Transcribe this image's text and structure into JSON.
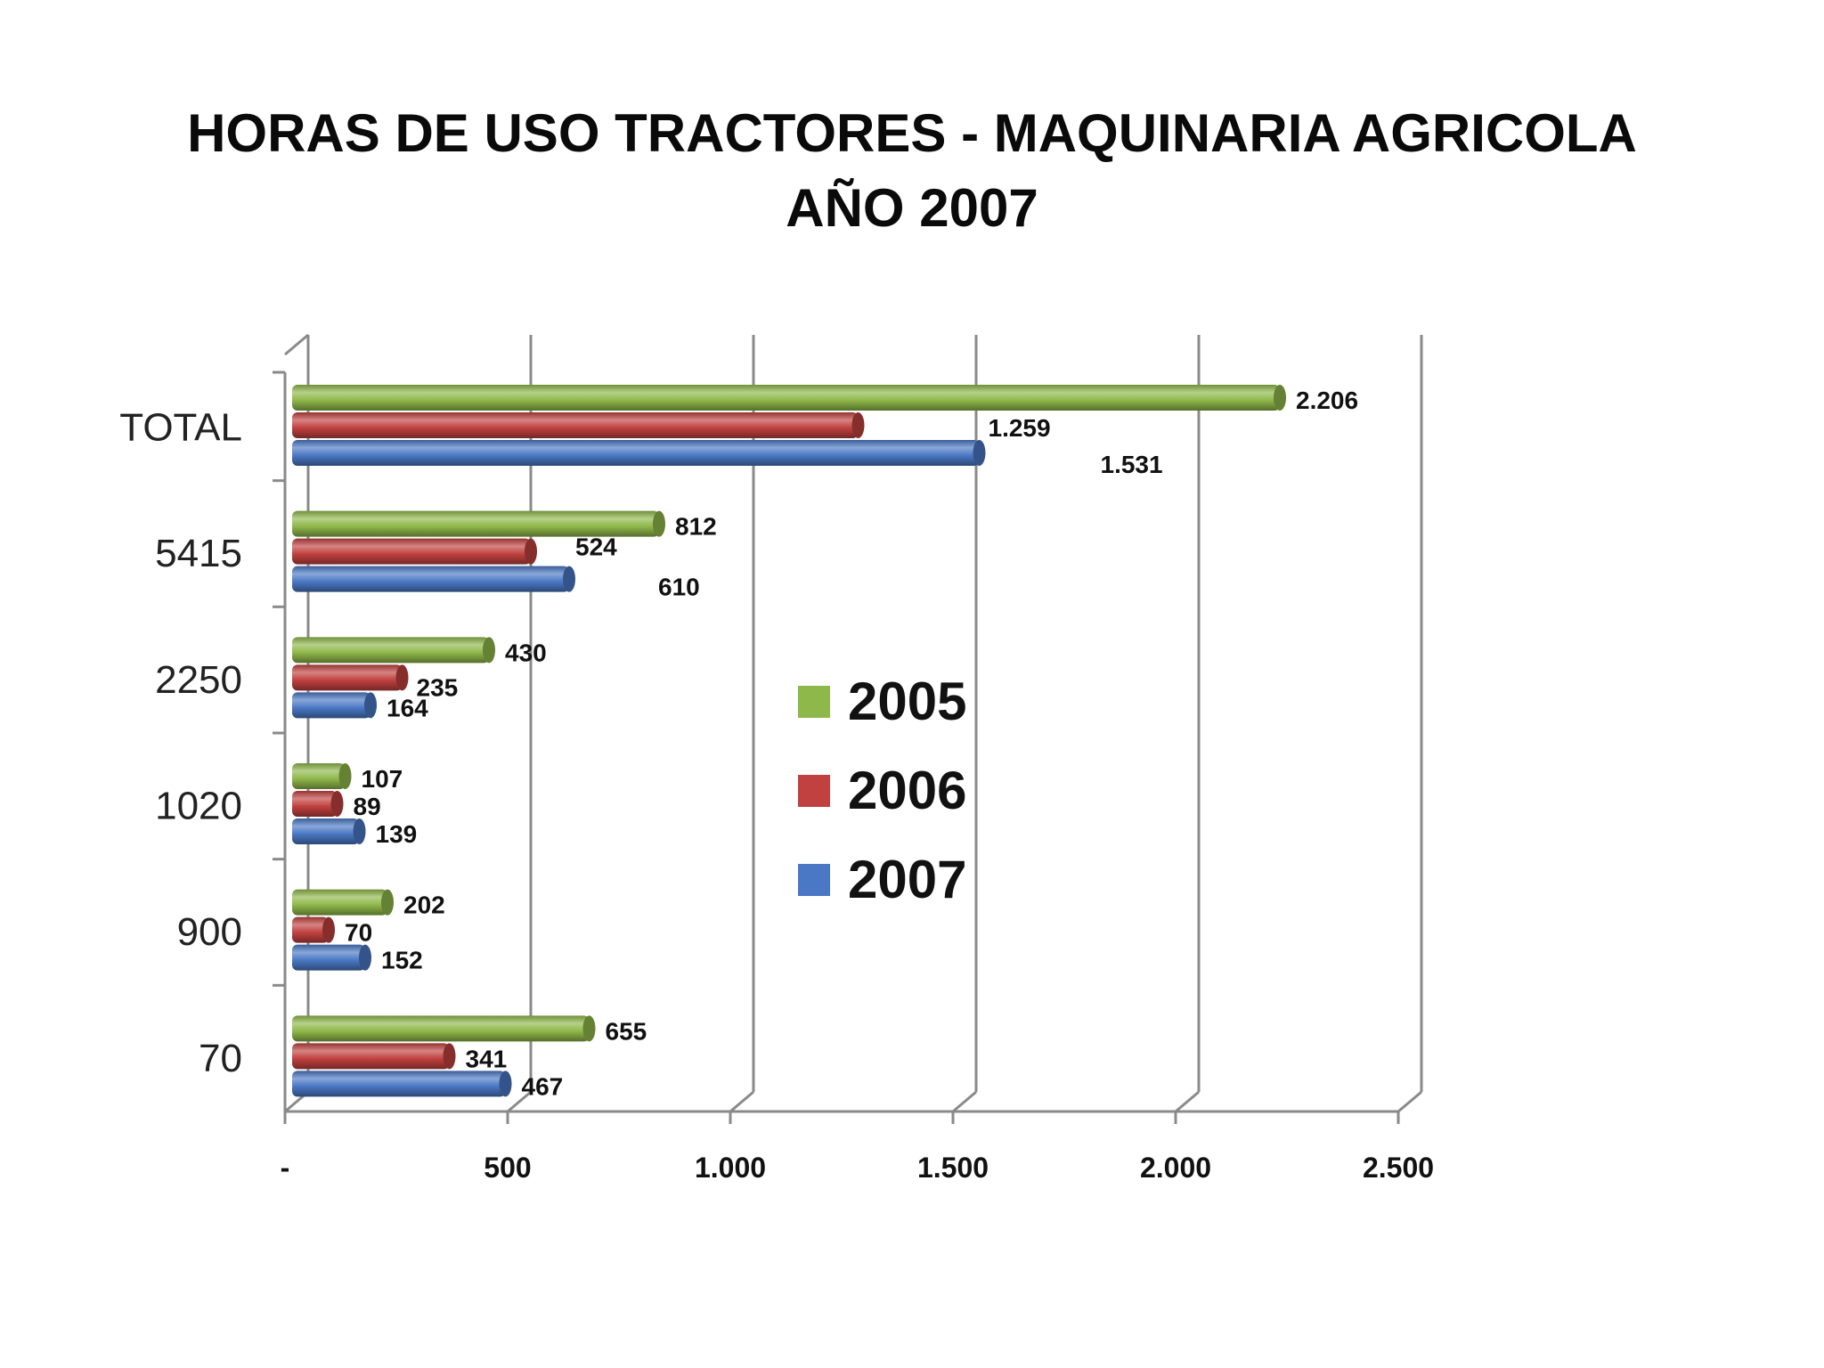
{
  "title_line1": "HORAS DE USO TRACTORES  -  MAQUINARIA AGRICOLA",
  "title_line2": "AÑO  2007",
  "chart_data": {
    "type": "bar",
    "orientation": "horizontal",
    "title": "HORAS DE USO TRACTORES  -  MAQUINARIA AGRICOLA AÑO  2007",
    "categories": [
      "TOTAL",
      "5415",
      "2250",
      "1020",
      "900",
      "70"
    ],
    "series": [
      {
        "name": "2005",
        "color": "#8fb84a",
        "values": [
          2206,
          812,
          430,
          107,
          202,
          655
        ],
        "labels": [
          "2.206",
          "812",
          "430",
          "107",
          "202",
          "655"
        ]
      },
      {
        "name": "2006",
        "color": "#c0413f",
        "values": [
          1259,
          524,
          235,
          89,
          70,
          341
        ],
        "labels": [
          "1.259",
          "524",
          "235",
          "89",
          "70",
          "341"
        ]
      },
      {
        "name": "2007",
        "color": "#4a78c4",
        "values": [
          1531,
          610,
          164,
          139,
          152,
          467
        ],
        "labels": [
          "1.531",
          "610",
          "164",
          "139",
          "152",
          "467"
        ]
      }
    ],
    "xlim": [
      0,
      2500
    ],
    "xticks": [
      0,
      500,
      1000,
      1500,
      2000,
      2500
    ],
    "xtick_labels": [
      "-",
      "500",
      "1.000",
      "1.500",
      "2.000",
      "2.500"
    ],
    "grid": "vertical",
    "style": "3d-cylinder",
    "legend": "center-right"
  }
}
